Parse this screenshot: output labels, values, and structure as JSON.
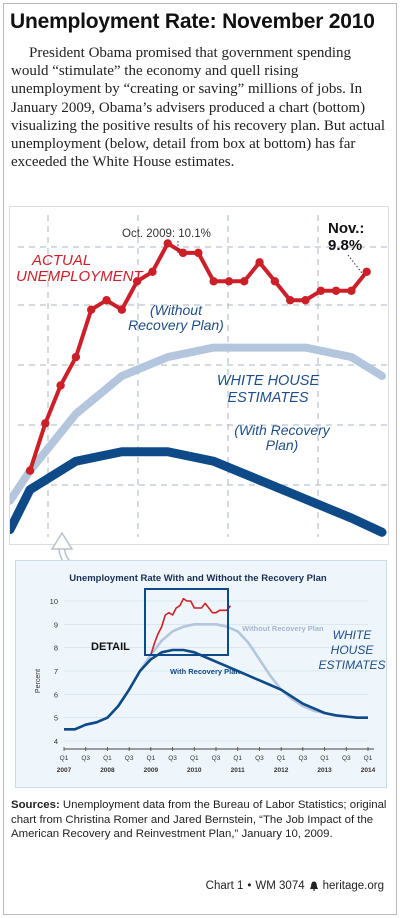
{
  "title": "Unemployment Rate: November 2010",
  "intro": "President Obama promised that government spending would “stimulate” the economy and quell rising unemployment by “creating or saving” millions of jobs. In January 2009, Obama’s advisers produced a chart (bottom) visualizing the positive results of his recovery plan. But actual unemployment (below, detail from box at bottom) has far exceeded the White House estimates.",
  "colors": {
    "actual": "#cc1f27",
    "with_plan": "#0e4a88",
    "without_plan": "#b3c6dd",
    "grid": "#aab4c4",
    "panel": "#eef6fb"
  },
  "detail": {
    "actual_label": "ACTUAL UNEMPLOYMENT",
    "peak_label": "Oct. 2009: 10.1%",
    "nov_label_1": "Nov.:",
    "nov_label_2": "9.8%",
    "without_label": "(Without Recovery Plan)",
    "white_house_label": "WHITE HOUSE ESTIMATES",
    "with_label": "(With Recovery Plan)"
  },
  "chart_data": [
    {
      "type": "line",
      "panel": "detail",
      "xlim": [
        "2009-01",
        "2010-12"
      ],
      "ylim": [
        7.0,
        10.4
      ],
      "series": [
        {
          "name": "ACTUAL UNEMPLOYMENT",
          "x": [
            "2009-01",
            "2009-02",
            "2009-03",
            "2009-04",
            "2009-05",
            "2009-06",
            "2009-07",
            "2009-08",
            "2009-09",
            "2009-10",
            "2009-11",
            "2009-12",
            "2010-01",
            "2010-02",
            "2010-03",
            "2010-04",
            "2010-05",
            "2010-06",
            "2010-07",
            "2010-08",
            "2010-09",
            "2010-10",
            "2010-11"
          ],
          "values": [
            7.7,
            8.2,
            8.6,
            8.9,
            9.4,
            9.5,
            9.4,
            9.7,
            9.8,
            10.1,
            10.0,
            10.0,
            9.7,
            9.7,
            9.7,
            9.9,
            9.7,
            9.5,
            9.5,
            9.6,
            9.6,
            9.6,
            9.8
          ]
        },
        {
          "name": "(Without Recovery Plan)",
          "x": [
            "2009-01",
            "2009-04",
            "2009-07",
            "2009-10",
            "2010-01",
            "2010-04",
            "2010-07",
            "2010-10",
            "2010-12"
          ],
          "values": [
            7.7,
            8.3,
            8.7,
            8.9,
            9.0,
            9.0,
            9.0,
            8.9,
            8.7
          ]
        },
        {
          "name": "(With Recovery Plan)",
          "x": [
            "2009-01",
            "2009-04",
            "2009-07",
            "2009-10",
            "2010-01",
            "2010-04",
            "2010-07",
            "2010-10",
            "2010-12"
          ],
          "values": [
            7.5,
            7.8,
            7.9,
            7.9,
            7.8,
            7.6,
            7.4,
            7.2,
            7.05
          ]
        }
      ]
    },
    {
      "type": "line",
      "panel": "original",
      "title": "Unemployment Rate With and Without the Recovery Plan",
      "ylabel": "Percent",
      "ylim": [
        4,
        10
      ],
      "yticks": [
        4,
        5,
        6,
        7,
        8,
        9,
        10
      ],
      "quarter_labels": [
        "Q1",
        "Q3",
        "Q1",
        "Q3",
        "Q1",
        "Q3",
        "Q1",
        "Q3",
        "Q1",
        "Q3",
        "Q1",
        "Q3",
        "Q1",
        "Q3",
        "Q1"
      ],
      "year_labels": [
        "2007",
        "2008",
        "2009",
        "2010",
        "2011",
        "2012",
        "2013",
        "2014"
      ],
      "detail_label": "DETAIL",
      "white_house_label": "WHITE HOUSE ESTIMATES",
      "series": [
        {
          "name": "Without Recovery Plan",
          "x": [
            "2007Q1",
            "2007Q2",
            "2007Q3",
            "2007Q4",
            "2008Q1",
            "2008Q2",
            "2008Q3",
            "2008Q4",
            "2009Q1",
            "2009Q2",
            "2009Q3",
            "2009Q4",
            "2010Q1",
            "2010Q2",
            "2010Q3",
            "2010Q4",
            "2011Q1",
            "2011Q2",
            "2011Q3",
            "2011Q4",
            "2012Q1",
            "2012Q2",
            "2012Q3",
            "2012Q4",
            "2013Q1",
            "2013Q2",
            "2013Q3",
            "2013Q4",
            "2014Q1"
          ],
          "values": [
            4.5,
            4.5,
            4.7,
            4.8,
            5.0,
            5.5,
            6.2,
            7.0,
            7.7,
            8.3,
            8.7,
            8.9,
            9.0,
            9.0,
            9.0,
            8.9,
            8.7,
            8.2,
            7.5,
            6.8,
            6.2,
            5.8,
            5.5,
            5.3,
            5.2,
            5.1,
            5.05,
            5.0,
            5.0
          ]
        },
        {
          "name": "With Recovery Plan",
          "x": [
            "2007Q1",
            "2007Q2",
            "2007Q3",
            "2007Q4",
            "2008Q1",
            "2008Q2",
            "2008Q3",
            "2008Q4",
            "2009Q1",
            "2009Q2",
            "2009Q3",
            "2009Q4",
            "2010Q1",
            "2010Q2",
            "2010Q3",
            "2010Q4",
            "2011Q1",
            "2011Q2",
            "2011Q3",
            "2011Q4",
            "2012Q1",
            "2012Q2",
            "2012Q3",
            "2012Q4",
            "2013Q1",
            "2013Q2",
            "2013Q3",
            "2013Q4",
            "2014Q1"
          ],
          "values": [
            4.5,
            4.5,
            4.7,
            4.8,
            5.0,
            5.5,
            6.2,
            7.0,
            7.5,
            7.8,
            7.9,
            7.9,
            7.8,
            7.6,
            7.4,
            7.2,
            7.0,
            6.8,
            6.6,
            6.4,
            6.2,
            5.9,
            5.6,
            5.4,
            5.2,
            5.1,
            5.05,
            5.0,
            5.0
          ]
        },
        {
          "name": "Actual",
          "x": [
            "2009-01",
            "2009-02",
            "2009-03",
            "2009-04",
            "2009-05",
            "2009-06",
            "2009-07",
            "2009-08",
            "2009-09",
            "2009-10",
            "2009-11",
            "2009-12",
            "2010-01",
            "2010-02",
            "2010-03",
            "2010-04",
            "2010-05",
            "2010-06",
            "2010-07",
            "2010-08",
            "2010-09",
            "2010-10",
            "2010-11"
          ],
          "values": [
            7.7,
            8.2,
            8.6,
            8.9,
            9.4,
            9.5,
            9.4,
            9.7,
            9.8,
            10.1,
            10.0,
            10.0,
            9.7,
            9.7,
            9.7,
            9.9,
            9.7,
            9.5,
            9.5,
            9.6,
            9.6,
            9.6,
            9.8
          ]
        }
      ]
    }
  ],
  "sources": {
    "label": "Sources:",
    "text": "Unemployment data from the Bureau of Labor Statistics; original chart from Christina Romer and Jared Bernstein, “The Job Impact of the American Recovery and Reinvestment Plan,” January 10, 2009."
  },
  "credit": {
    "chart": "Chart 1",
    "sep": "•",
    "wm": "WM 3074",
    "site": "heritage.org"
  }
}
